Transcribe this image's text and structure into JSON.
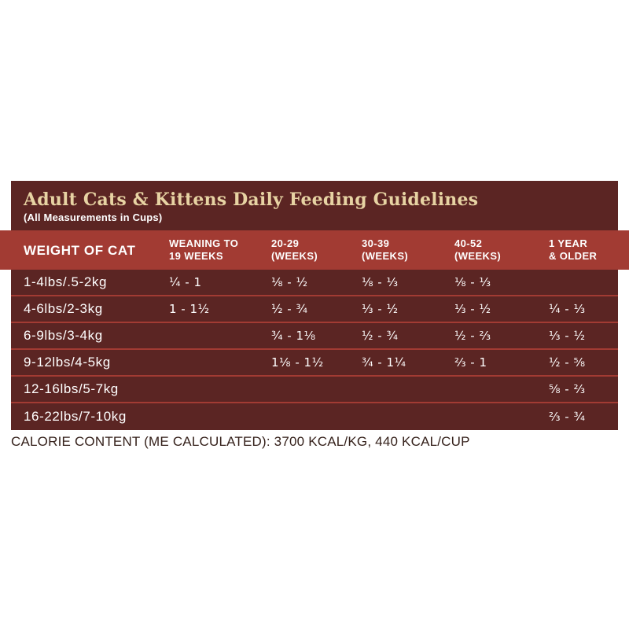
{
  "panel": {
    "title": "Adult Cats & Kittens Daily Feeding Guidelines",
    "subtitle": "(All Measurements in Cups)",
    "colors": {
      "panel_background": "#5b2523",
      "header_band": "#a23b33",
      "title_text": "#e7d3a3",
      "body_text": "#ffffff",
      "divider": "#a23b33",
      "footer_text": "#35211b"
    }
  },
  "table": {
    "columns": [
      {
        "line1": "WEIGHT OF CAT",
        "line2": ""
      },
      {
        "line1": "WEANING TO",
        "line2": "19 WEEKS"
      },
      {
        "line1": "20-29",
        "line2": "(WEEKS)"
      },
      {
        "line1": "30-39",
        "line2": "(WEEKS)"
      },
      {
        "line1": "40-52",
        "line2": "(WEEKS)"
      },
      {
        "line1": "1 YEAR",
        "line2": "& OLDER"
      }
    ],
    "rows": [
      {
        "weight": "1-4lbs/.5-2kg",
        "values": [
          "¼ - 1",
          "⅛ - ½",
          "⅛ - ⅓",
          "⅛ - ⅓",
          ""
        ]
      },
      {
        "weight": "4-6lbs/2-3kg",
        "values": [
          "1 - 1½",
          "½ - ¾",
          "⅓ - ½",
          "⅓ - ½",
          "¼ - ⅓"
        ]
      },
      {
        "weight": "6-9lbs/3-4kg",
        "values": [
          "",
          "¾ - 1⅛",
          "½ - ¾",
          "½ - ⅔",
          "⅓ - ½"
        ]
      },
      {
        "weight": "9-12lbs/4-5kg",
        "values": [
          "",
          "1⅛ - 1½",
          "¾ - 1¼",
          "⅔ - 1",
          "½ - ⅝"
        ]
      },
      {
        "weight": "12-16lbs/5-7kg",
        "values": [
          "",
          "",
          "",
          "",
          "⅝ - ⅔"
        ]
      },
      {
        "weight": "16-22lbs/7-10kg",
        "values": [
          "",
          "",
          "",
          "",
          "⅔ - ¾"
        ]
      }
    ]
  },
  "footer": {
    "calorie_text": "CALORIE CONTENT (ME CALCULATED): 3700 KCAL/KG, 440 KCAL/CUP"
  }
}
